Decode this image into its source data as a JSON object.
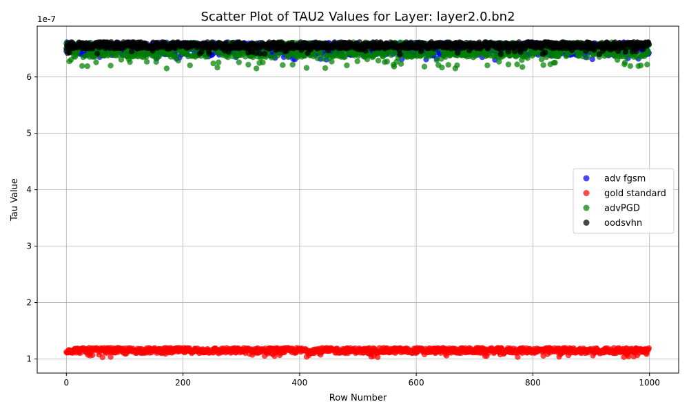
{
  "chart_data": {
    "type": "scatter",
    "title": "Scatter Plot of TAU2 Values for Layer: layer2.0.bn2",
    "xlabel": "Row Number",
    "ylabel": "Tau Value",
    "y_offset_text": "1e-7",
    "xlim": [
      -50,
      1050
    ],
    "ylim": [
      0.75,
      6.9
    ],
    "x_ticks": [
      0,
      200,
      400,
      600,
      800,
      1000
    ],
    "x_tick_labels": [
      "0",
      "200",
      "400",
      "600",
      "800",
      "1000"
    ],
    "y_ticks": [
      1,
      2,
      3,
      4,
      5,
      6
    ],
    "y_tick_labels": [
      "1",
      "2",
      "3",
      "4",
      "5",
      "6"
    ],
    "grid": true,
    "legend_position": "center-right",
    "n_points_per_series": 1000,
    "x_range": [
      0,
      999
    ],
    "series": [
      {
        "name": "adv fgsm",
        "color": "#0000ff",
        "y_center": 6.5,
        "y_min": 6.3,
        "y_max": 6.62
      },
      {
        "name": "gold standard",
        "color": "#ff0000",
        "y_center": 1.15,
        "y_min": 1.03,
        "y_max": 1.2
      },
      {
        "name": "advPGD",
        "color": "#008000",
        "y_center": 6.48,
        "y_min": 6.15,
        "y_max": 6.62
      },
      {
        "name": "oodsvhn",
        "color": "#000000",
        "y_center": 6.56,
        "y_min": 6.4,
        "y_max": 6.62
      }
    ]
  }
}
